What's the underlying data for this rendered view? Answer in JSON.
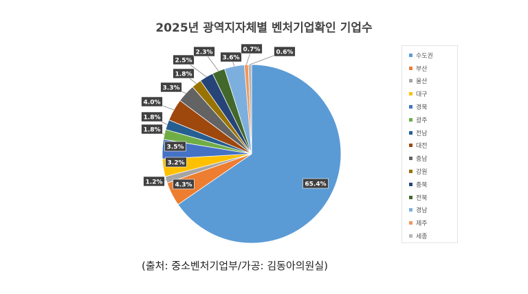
{
  "chart_data": {
    "type": "pie",
    "title": "2025년 광역지자체별 벤처기업확인 기업수",
    "categories": [
      "수도권",
      "부산",
      "울산",
      "대구",
      "경북",
      "광주",
      "전남",
      "대전",
      "충남",
      "강원",
      "충북",
      "전북",
      "경남",
      "제주",
      "세종"
    ],
    "values": [
      65.4,
      4.3,
      1.2,
      3.2,
      3.5,
      1.8,
      1.8,
      4.0,
      3.3,
      1.8,
      2.5,
      2.3,
      3.6,
      0.7,
      0.6
    ],
    "data_labels": [
      "65.4%",
      "4.3%",
      "1.2%",
      "3.2%",
      "3.5%",
      "1.8%",
      "1.8%",
      "4.0%",
      "3.3%",
      "1.8%",
      "2.5%",
      "2.3%",
      "3.6%",
      "0.7%",
      "0.6%"
    ],
    "colors": [
      "#5B9BD5",
      "#ED7D31",
      "#A5A5A5",
      "#FFC000",
      "#4472C4",
      "#70AD47",
      "#255E91",
      "#9E480E",
      "#636363",
      "#997300",
      "#264478",
      "#43682B",
      "#7CAFDD",
      "#F1975A",
      "#B7B7B7"
    ],
    "legend_position": "right",
    "grid": false
  },
  "source_note": "(출처:  중소벤처기업부/가공:  김동아의원실)"
}
